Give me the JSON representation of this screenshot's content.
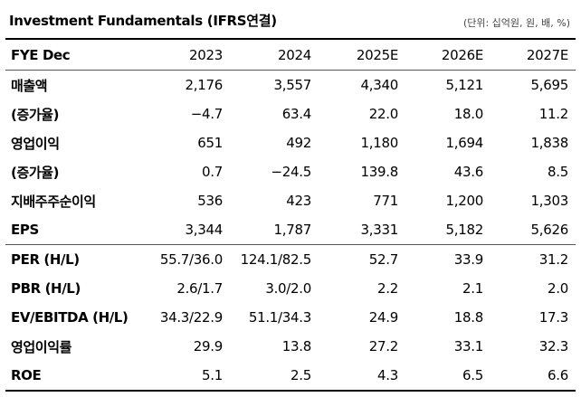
{
  "title": "Investment Fundamentals (IFRS연결)",
  "unit": "(단위: 십억원, 원, 배, %)",
  "columns": [
    "FYE Dec",
    "2023",
    "2024",
    "2025E",
    "2026E",
    "2027E"
  ],
  "rows": [
    {
      "label": "매출액",
      "values": [
        "2,176",
        "3,557",
        "4,340",
        "5,121",
        "5,695"
      ]
    },
    {
      "label": "(증가율)",
      "values": [
        "−4.7",
        "63.4",
        "22.0",
        "18.0",
        "11.2"
      ]
    },
    {
      "label": "영업이익",
      "values": [
        "651",
        "492",
        "1,180",
        "1,694",
        "1,838"
      ]
    },
    {
      "label": "(증가율)",
      "values": [
        "0.7",
        "−24.5",
        "139.8",
        "43.6",
        "8.5"
      ]
    },
    {
      "label": "지배주주순이익",
      "values": [
        "536",
        "423",
        "771",
        "1,200",
        "1,303"
      ]
    },
    {
      "label": "EPS",
      "values": [
        "3,344",
        "1,787",
        "3,331",
        "5,182",
        "5,626"
      ]
    },
    {
      "label": "PER (H/L)",
      "values": [
        "55.7/36.0",
        "124.1/82.5",
        "52.7",
        "33.9",
        "31.2"
      ]
    },
    {
      "label": "PBR (H/L)",
      "values": [
        "2.6/1.7",
        "3.0/2.0",
        "2.2",
        "2.1",
        "2.0"
      ]
    },
    {
      "label": "EV/EBITDA (H/L)",
      "values": [
        "34.3/22.9",
        "51.1/34.3",
        "24.9",
        "18.8",
        "17.3"
      ]
    },
    {
      "label": "영업이익률",
      "values": [
        "29.9",
        "13.8",
        "27.2",
        "33.1",
        "32.3"
      ]
    },
    {
      "label": "ROE",
      "values": [
        "5.1",
        "2.5",
        "4.3",
        "6.5",
        "6.6"
      ]
    }
  ]
}
